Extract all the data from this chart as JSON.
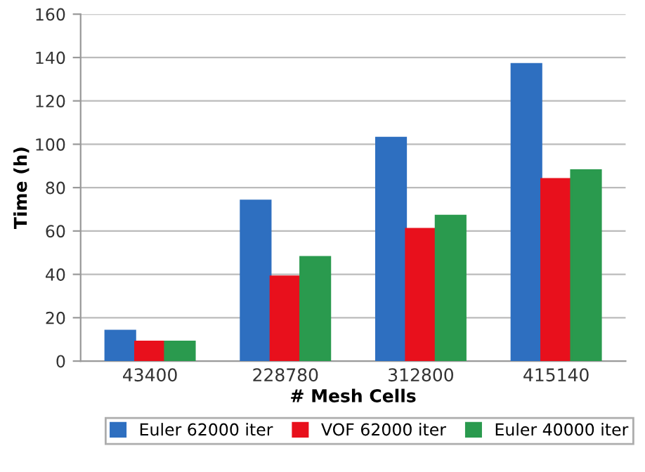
{
  "chart_data": {
    "type": "bar",
    "xlabel": "# Mesh Cells",
    "ylabel": "Time (h)",
    "categories": [
      "43400",
      "228780",
      "312800",
      "415140"
    ],
    "series": [
      {
        "name": "Euler 62000 iter",
        "color": "#2e6fc0",
        "values": [
          14,
          74,
          103,
          137
        ]
      },
      {
        "name": "VOF 62000 iter",
        "color": "#e8101c",
        "values": [
          9,
          39,
          61,
          84
        ]
      },
      {
        "name": "Euler 40000 iter",
        "color": "#2a9a4e",
        "values": [
          9,
          48,
          67,
          88
        ]
      }
    ],
    "ylim": [
      0,
      160
    ],
    "yticks": [
      0,
      20,
      40,
      60,
      80,
      100,
      120,
      140,
      160
    ],
    "grid": "y",
    "legend": "bottom"
  }
}
